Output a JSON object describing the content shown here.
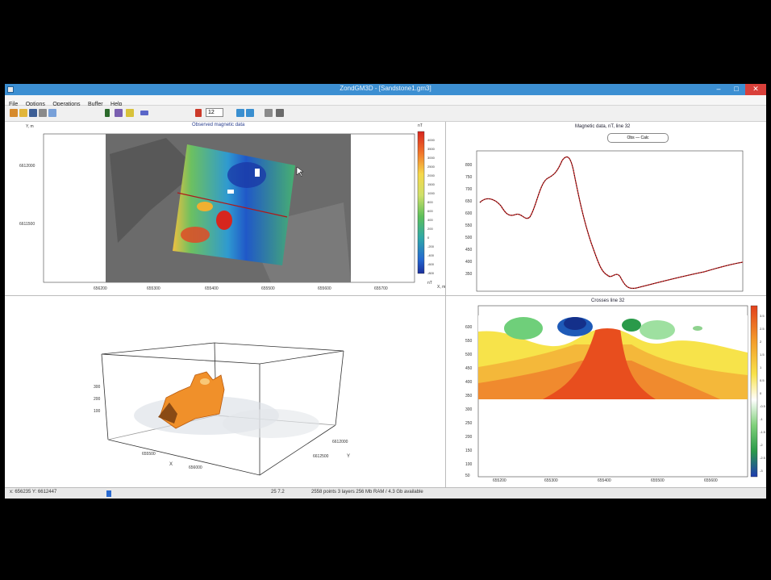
{
  "window": {
    "title": "ZondGM3D - [Sandstone1.gm3]",
    "min_glyph": "–",
    "max_glyph": "□",
    "close_glyph": "✕"
  },
  "menu": [
    "File",
    "Options",
    "Operations",
    "Buffer",
    "Help"
  ],
  "toolbar": {
    "spin_value": "12",
    "icons": [
      "new-icon",
      "open-icon",
      "save-icon",
      "settings-icon",
      "help-icon",
      "grid-icon",
      "layers-icon",
      "pin-icon",
      "profile-icon",
      "marker-icon",
      "model-icon",
      "model2-icon",
      "copy-icon",
      "print-icon"
    ]
  },
  "map_panel": {
    "title": "Observed magnetic data",
    "y_unit": "Y, m",
    "x_unit": "X, m",
    "y_ticks": [
      "6612000",
      "6611500"
    ],
    "x_ticks": [
      "656200",
      "655300",
      "655400",
      "655500",
      "655600",
      "655700"
    ],
    "scale_unit": "nT",
    "scale_values": [
      "4000",
      "3500",
      "3000",
      "2500",
      "2000",
      "1500",
      "1000",
      "800",
      "600",
      "400",
      "200",
      "0",
      "-200",
      "-400",
      "-600",
      "-800"
    ]
  },
  "graph_panel": {
    "title": "Magnetic data, nT, line 32",
    "legend_obs": "Obs",
    "legend_calc": "Calc",
    "y_ticks": [
      "800",
      "750",
      "700",
      "650",
      "600",
      "550",
      "500",
      "450",
      "400",
      "350",
      "300",
      "250",
      "200",
      "150"
    ]
  },
  "section_panel": {
    "title": "Crosses line 32",
    "y_ticks": [
      "600",
      "550",
      "500",
      "450",
      "400",
      "350",
      "300",
      "250",
      "200",
      "150",
      "100",
      "50"
    ],
    "x_ticks": [
      "655200",
      "655300",
      "655400",
      "655500",
      "655600"
    ],
    "scale_values": [
      "3.5",
      "2.5",
      "2",
      "1.5",
      "1",
      "0.5",
      "0",
      "-0.5",
      "-1",
      "-1.5",
      "-2",
      "-2.5",
      "-3"
    ]
  },
  "view3d": {
    "z_ticks": [
      "300",
      "200",
      "100"
    ],
    "x_ticks": [
      "655500",
      "656000"
    ],
    "y_ticks": [
      "6612000",
      "6612500"
    ],
    "x_label": "X",
    "y_label": "Y"
  },
  "status": {
    "coords": "x: 656235 Y: 6612447",
    "cursor": "25   7.2",
    "info": "2558 points   3 layers   256 Mb RAM / 4.3 Gb available"
  }
}
